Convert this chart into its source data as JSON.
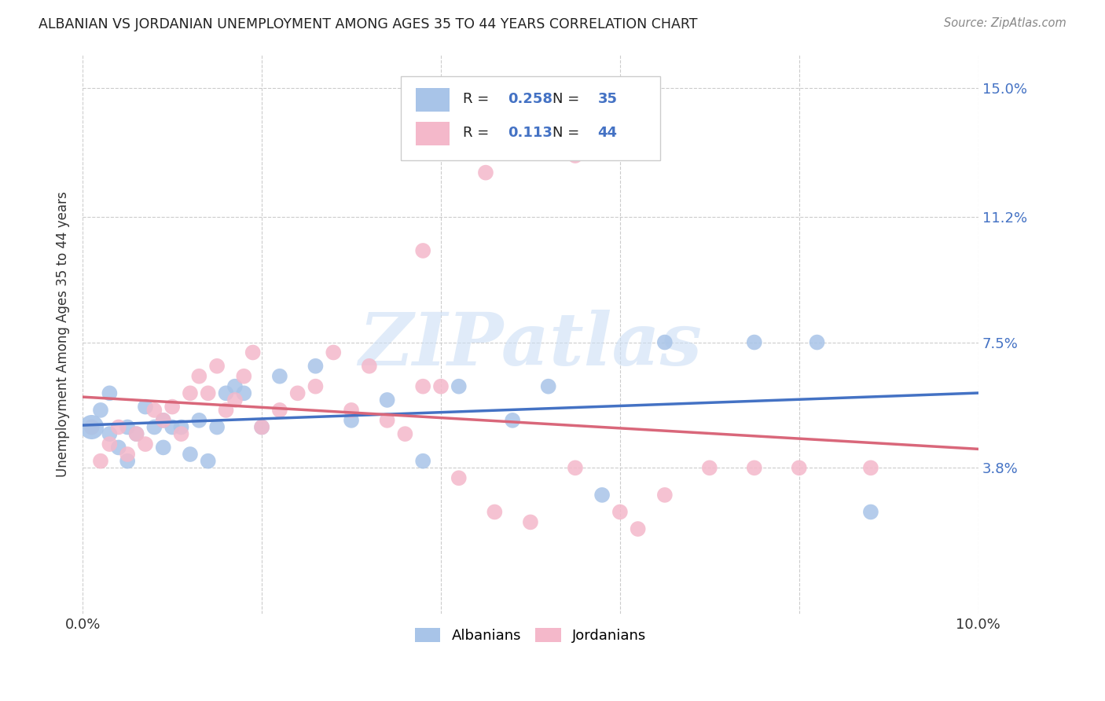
{
  "title": "ALBANIAN VS JORDANIAN UNEMPLOYMENT AMONG AGES 35 TO 44 YEARS CORRELATION CHART",
  "source": "Source: ZipAtlas.com",
  "ylabel": "Unemployment Among Ages 35 to 44 years",
  "xlim": [
    0.0,
    0.1
  ],
  "ylim": [
    -0.005,
    0.16
  ],
  "yticks": [
    0.038,
    0.075,
    0.112,
    0.15
  ],
  "ytick_labels": [
    "3.8%",
    "7.5%",
    "11.2%",
    "15.0%"
  ],
  "xtick_labels": [
    "0.0%",
    "",
    "",
    "",
    "",
    "10.0%"
  ],
  "albanian_color": "#a8c4e8",
  "jordanian_color": "#f4b8ca",
  "albanian_line_color": "#4472c4",
  "jordanian_line_color": "#d9677a",
  "R_albanian": "0.258",
  "N_albanian": "35",
  "R_jordanian": "0.113",
  "N_jordanian": "44",
  "legend_blue": "#4472c4",
  "legend_red": "#d9677a",
  "text_dark": "#222222",
  "watermark": "ZIPatlas",
  "background_color": "#ffffff",
  "grid_color": "#cccccc",
  "alb_x": [
    0.001,
    0.002,
    0.003,
    0.004,
    0.005,
    0.006,
    0.007,
    0.008,
    0.009,
    0.01,
    0.011,
    0.012,
    0.013,
    0.014,
    0.015,
    0.016,
    0.017,
    0.018,
    0.02,
    0.022,
    0.026,
    0.03,
    0.034,
    0.038,
    0.042,
    0.048,
    0.052,
    0.058,
    0.065,
    0.075,
    0.082,
    0.088,
    0.003,
    0.005,
    0.009
  ],
  "alb_y": [
    0.05,
    0.055,
    0.048,
    0.044,
    0.05,
    0.048,
    0.056,
    0.05,
    0.044,
    0.05,
    0.05,
    0.042,
    0.052,
    0.04,
    0.05,
    0.06,
    0.062,
    0.06,
    0.05,
    0.065,
    0.068,
    0.052,
    0.058,
    0.04,
    0.062,
    0.052,
    0.062,
    0.03,
    0.075,
    0.075,
    0.075,
    0.025,
    0.06,
    0.04,
    0.052
  ],
  "jor_x": [
    0.001,
    0.002,
    0.003,
    0.004,
    0.005,
    0.006,
    0.007,
    0.008,
    0.009,
    0.01,
    0.011,
    0.012,
    0.013,
    0.014,
    0.015,
    0.016,
    0.017,
    0.018,
    0.019,
    0.02,
    0.022,
    0.024,
    0.026,
    0.028,
    0.03,
    0.032,
    0.034,
    0.036,
    0.038,
    0.04,
    0.042,
    0.046,
    0.05,
    0.055,
    0.06,
    0.065,
    0.07,
    0.075,
    0.08,
    0.038,
    0.045,
    0.055,
    0.062,
    0.088
  ],
  "jor_y": [
    0.05,
    0.04,
    0.045,
    0.05,
    0.042,
    0.048,
    0.045,
    0.055,
    0.052,
    0.056,
    0.048,
    0.06,
    0.065,
    0.06,
    0.068,
    0.055,
    0.058,
    0.065,
    0.072,
    0.05,
    0.055,
    0.06,
    0.062,
    0.072,
    0.055,
    0.068,
    0.052,
    0.048,
    0.062,
    0.062,
    0.035,
    0.025,
    0.022,
    0.038,
    0.025,
    0.03,
    0.038,
    0.038,
    0.038,
    0.102,
    0.125,
    0.13,
    0.02,
    0.038
  ]
}
